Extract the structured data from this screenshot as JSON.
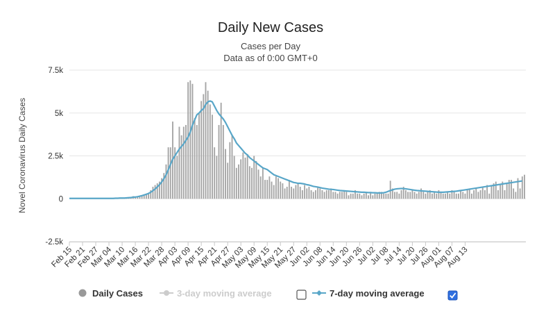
{
  "chart_data": {
    "type": "bar+line",
    "title": "Daily New Cases",
    "subtitle_lines": [
      "Cases per Day",
      "Data as of 0:00 GMT+0"
    ],
    "ylabel": "Novel Coronavirus Daily Cases",
    "xlabel": "",
    "ylim": [
      -2500,
      7500
    ],
    "yticks": [
      {
        "value": 7500,
        "label": "7.5k"
      },
      {
        "value": 5000,
        "label": "5k"
      },
      {
        "value": 2500,
        "label": "2.5k"
      },
      {
        "value": 0,
        "label": "0"
      },
      {
        "value": -2500,
        "label": "-2.5k"
      }
    ],
    "start_date": "Feb 15",
    "xtick_labels": [
      "Feb 15",
      "Feb 21",
      "Feb 27",
      "Mar 04",
      "Mar 10",
      "Mar 16",
      "Mar 22",
      "Mar 28",
      "Apr 03",
      "Apr 09",
      "Apr 15",
      "Apr 21",
      "Apr 27",
      "May 03",
      "May 09",
      "May 15",
      "May 21",
      "May 27",
      "Jun 02",
      "Jun 08",
      "Jun 14",
      "Jun 20",
      "Jun 26",
      "Jul 02",
      "Jul 08",
      "Jul 14",
      "Jul 20",
      "Jul 26",
      "Aug 01",
      "Aug 07",
      "Aug 13"
    ],
    "xtick_step_days": 6,
    "daily_cases": [
      0,
      0,
      0,
      0,
      0,
      0,
      0,
      0,
      0,
      0,
      0,
      0,
      0,
      0,
      0,
      0,
      0,
      0,
      0,
      0,
      0,
      5,
      10,
      10,
      10,
      20,
      30,
      50,
      80,
      150,
      80,
      100,
      150,
      200,
      250,
      300,
      350,
      500,
      700,
      800,
      900,
      1000,
      1200,
      1500,
      2000,
      3000,
      3000,
      4500,
      3000,
      2500,
      4200,
      3700,
      4200,
      4300,
      6800,
      6900,
      6700,
      4700,
      4300,
      5000,
      5700,
      6100,
      6800,
      6300,
      5500,
      4900,
      3000,
      2500,
      4300,
      5600,
      4300,
      2900,
      2100,
      3300,
      3700,
      2500,
      1800,
      2000,
      2300,
      2700,
      2400,
      2600,
      1900,
      1800,
      2500,
      2200,
      1700,
      1300,
      1800,
      1100,
      1100,
      1300,
      1000,
      800,
      1300,
      1200,
      1000,
      900,
      600,
      700,
      1100,
      700,
      600,
      800,
      900,
      700,
      500,
      800,
      600,
      700,
      500,
      400,
      500,
      700,
      600,
      500,
      400,
      500,
      500,
      600,
      400,
      400,
      300,
      400,
      400,
      500,
      400,
      200,
      300,
      300,
      500,
      300,
      300,
      200,
      300,
      400,
      200,
      400,
      200,
      300,
      300,
      400,
      400,
      300,
      300,
      300,
      1050,
      600,
      400,
      400,
      300,
      500,
      700,
      500,
      400,
      400,
      500,
      400,
      300,
      400,
      600,
      400,
      300,
      400,
      500,
      300,
      400,
      300,
      500,
      400,
      300,
      300,
      400,
      300,
      500,
      400,
      300,
      300,
      500,
      400,
      300,
      500,
      600,
      300,
      500,
      600,
      400,
      500,
      700,
      500,
      800,
      300,
      800,
      900,
      1000,
      500,
      800,
      1000,
      500,
      900,
      1100,
      1100,
      600,
      400,
      1200,
      600,
      1300,
      1400
    ],
    "moving_average_7": [
      20,
      20,
      20,
      20,
      20,
      20,
      20,
      20,
      20,
      20,
      20,
      20,
      20,
      20,
      20,
      20,
      20,
      20,
      20,
      20,
      20,
      30,
      30,
      40,
      40,
      40,
      50,
      60,
      70,
      90,
      100,
      120,
      150,
      180,
      220,
      260,
      310,
      380,
      470,
      570,
      690,
      820,
      980,
      1170,
      1400,
      1700,
      2000,
      2300,
      2500,
      2700,
      2900,
      3050,
      3200,
      3400,
      3600,
      3900,
      4300,
      4600,
      4900,
      5000,
      5150,
      5250,
      5500,
      5650,
      5700,
      5650,
      5400,
      5150,
      4950,
      4800,
      4650,
      4450,
      4200,
      3950,
      3700,
      3500,
      3250,
      3100,
      2950,
      2800,
      2650,
      2550,
      2400,
      2300,
      2200,
      2100,
      2000,
      1900,
      1800,
      1750,
      1700,
      1600,
      1500,
      1400,
      1350,
      1300,
      1250,
      1200,
      1150,
      1100,
      1050,
      1000,
      950,
      930,
      900,
      900,
      880,
      860,
      820,
      800,
      760,
      720,
      700,
      680,
      650,
      620,
      600,
      580,
      560,
      550,
      540,
      520,
      500,
      480,
      470,
      460,
      450,
      440,
      430,
      420,
      410,
      400,
      390,
      380,
      380,
      370,
      360,
      360,
      350,
      350,
      340,
      340,
      340,
      350,
      380,
      430,
      480,
      520,
      560,
      580,
      590,
      600,
      590,
      580,
      560,
      540,
      520,
      500,
      480,
      470,
      460,
      450,
      440,
      430,
      420,
      410,
      400,
      390,
      380,
      380,
      380,
      390,
      400,
      410,
      420,
      430,
      440,
      460,
      480,
      500,
      520,
      540,
      560,
      580,
      600,
      620,
      640,
      660,
      680,
      700,
      720,
      740,
      760,
      780,
      800,
      820,
      840,
      860,
      880,
      900,
      920,
      940,
      960,
      980,
      1000,
      1020,
      1040
    ]
  },
  "legend": {
    "items": [
      {
        "label": "Daily Cases",
        "color": "#999999",
        "checkbox": null
      },
      {
        "label": "3-day moving average",
        "color": "#cccccc",
        "checkbox": false
      },
      {
        "label": "7-day moving average",
        "color": "#4a9fc4",
        "checkbox": true
      }
    ]
  },
  "colors": {
    "bar": "#a6a6a6",
    "line": "#58a6c8",
    "grid": "#e6e6e6",
    "axis": "#c8c8c8"
  }
}
